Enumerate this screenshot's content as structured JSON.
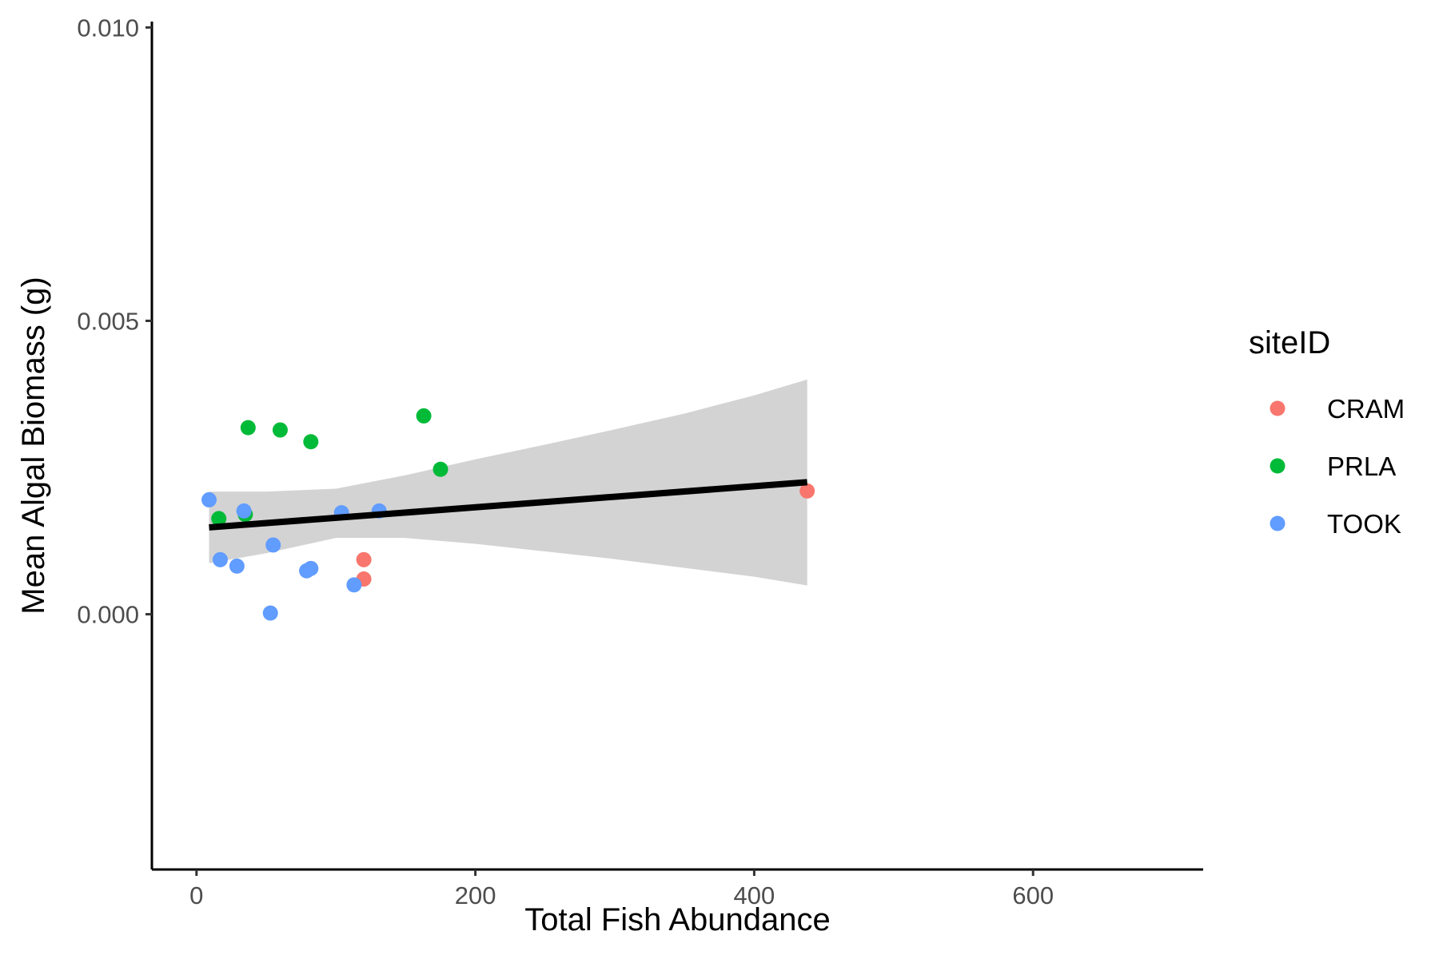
{
  "chart_data": {
    "type": "scatter",
    "title": "",
    "xlabel": "Total Fish Abundance",
    "ylabel": "Mean Algal Biomass (g)",
    "xlim": [
      -32,
      722
    ],
    "ylim": [
      -0.00435,
      0.0101
    ],
    "x_ticks": [
      0,
      200,
      400,
      600
    ],
    "x_tick_labels": [
      "0",
      "200",
      "400",
      "600"
    ],
    "y_ticks": [
      0.0,
      0.005,
      0.01
    ],
    "y_tick_labels": [
      "0.000",
      "0.005",
      "0.010"
    ],
    "grid": false,
    "legend": {
      "title": "siteID",
      "placement": "right"
    },
    "series": [
      {
        "name": "CRAM",
        "color": "#F8766D",
        "x": [
          120,
          120,
          438
        ],
        "y": [
          0.00093,
          0.0006,
          0.0021
        ]
      },
      {
        "name": "PRLA",
        "color": "#00BA38",
        "x": [
          37,
          60,
          82,
          163,
          175,
          16,
          35
        ],
        "y": [
          0.00318,
          0.00314,
          0.00294,
          0.00338,
          0.00247,
          0.00163,
          0.0017
        ]
      },
      {
        "name": "TOOK",
        "color": "#619CFF",
        "x": [
          9,
          17,
          29,
          34,
          53,
          55,
          79,
          82,
          104,
          113,
          131
        ],
        "y": [
          0.00195,
          0.00093,
          0.00082,
          0.00176,
          2e-05,
          0.00118,
          0.00074,
          0.00078,
          0.00173,
          0.0005,
          0.00176
        ]
      }
    ],
    "trend_line": {
      "x": [
        9,
        438
      ],
      "y": [
        0.00148,
        0.00225
      ],
      "color": "#000000"
    },
    "confidence_band": {
      "color": "#d3d3d3",
      "x": [
        9,
        50,
        100,
        150,
        200,
        250,
        300,
        350,
        400,
        438
      ],
      "upper": [
        0.00209,
        0.00209,
        0.00214,
        0.00237,
        0.00264,
        0.00289,
        0.00315,
        0.00342,
        0.00373,
        0.004
      ],
      "lower": [
        0.00087,
        0.00104,
        0.0013,
        0.0013,
        0.0012,
        0.00107,
        0.00094,
        0.00079,
        0.00064,
        0.00049
      ]
    }
  }
}
